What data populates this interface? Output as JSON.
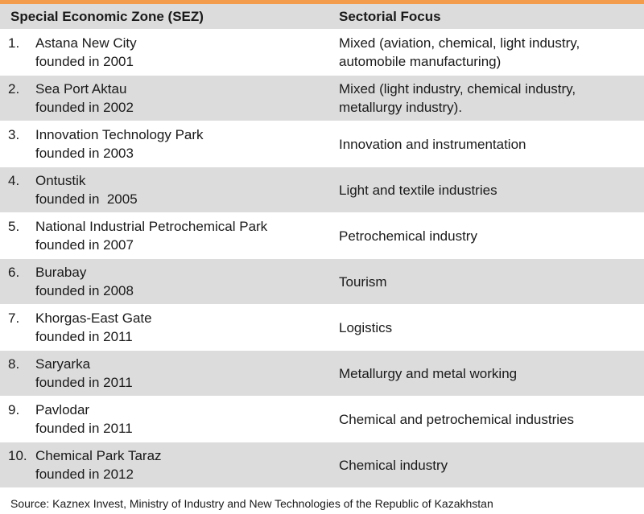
{
  "header": {
    "col_zone": "Special Economic Zone (SEZ)",
    "col_focus": "Sectorial Focus"
  },
  "rows": [
    {
      "num": "1.",
      "name": "Astana New City",
      "founded": "founded in 2001",
      "focus": "Mixed (aviation, chemical, light industry, automobile manufacturing)"
    },
    {
      "num": "2.",
      "name": "Sea Port Aktau",
      "founded": "founded in 2002",
      "focus": "Mixed (light industry, chemical industry, metallurgy industry)."
    },
    {
      "num": "3.",
      "name": "Innovation Technology Park",
      "founded": "founded in 2003",
      "focus": "Innovation and instrumentation"
    },
    {
      "num": "4.",
      "name": "Ontustik",
      "founded": "founded in  2005",
      "focus": "Light and textile industries"
    },
    {
      "num": "5.",
      "name": "National Industrial Petrochemical Park",
      "founded": "founded in 2007",
      "focus": "Petrochemical industry"
    },
    {
      "num": "6.",
      "name": "Burabay",
      "founded": "founded in 2008",
      "focus": "Tourism"
    },
    {
      "num": "7.",
      "name": "Khorgas-East Gate",
      "founded": "founded in 2011",
      "focus": "Logistics"
    },
    {
      "num": "8.",
      "name": "Saryarka",
      "founded": "founded in 2011",
      "focus": "Metallurgy and metal working"
    },
    {
      "num": "9.",
      "name": "Pavlodar",
      "founded": "founded in 2011",
      "focus": "Chemical and petrochemical industries"
    },
    {
      "num": "10.",
      "name": "Chemical Park Taraz",
      "founded": "founded in 2012",
      "focus": "Chemical industry"
    }
  ],
  "source": "Source: Kaznex Invest, Ministry of Industry and New Technologies of the Republic of Kazakhstan",
  "colors": {
    "accent": "#f39c4b",
    "stripe": "#dcdcdc"
  }
}
